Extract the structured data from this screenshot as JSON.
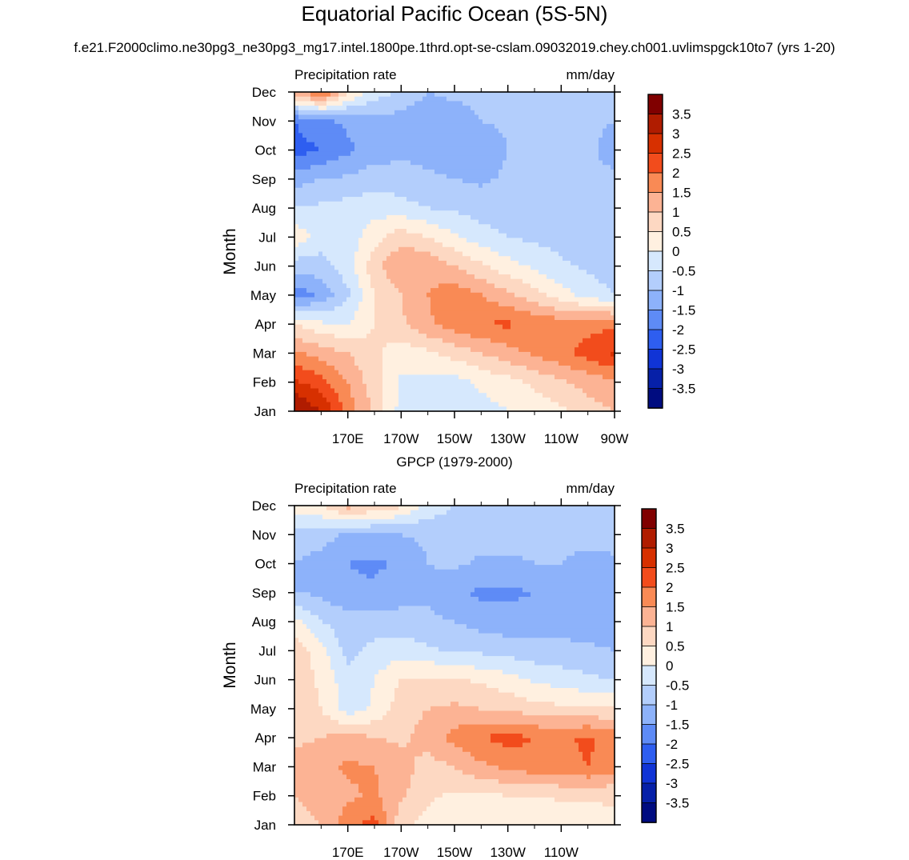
{
  "figure": {
    "title": "Equatorial Pacific Ocean (5S-5N)",
    "subtitle": "f.e21.F2000climo.ne30pg3_ne30pg3_mg17.intel.1800pe.1thrd.opt-se-cslam.09032019.chey.ch001.uvlimspgck10to7 (yrs 1-20)"
  },
  "chart_data": [
    {
      "type": "heatmap",
      "title": "",
      "left_label": "Precipitation rate",
      "right_label": "mm/day",
      "ylabel": "Month",
      "xlabel": "",
      "x_ticks": [
        "170E",
        "170W",
        "150W",
        "130W",
        "110W",
        "90W"
      ],
      "x_tick_values": [
        170,
        190,
        210,
        230,
        250,
        270
      ],
      "xlim": [
        150,
        270
      ],
      "y_ticks": [
        "Jan",
        "Feb",
        "Mar",
        "Apr",
        "May",
        "Jun",
        "Jul",
        "Aug",
        "Sep",
        "Oct",
        "Nov",
        "Dec"
      ],
      "ylim": [
        1,
        12
      ],
      "colorbar_labels": [
        "3.5",
        "3",
        "2.5",
        "2",
        "1.5",
        "1",
        "0.5",
        "0",
        "-0.5",
        "-1",
        "-1.5",
        "-2",
        "-2.5",
        "-3",
        "-3.5"
      ],
      "colorbar_colors": [
        "#800000",
        "#b01c00",
        "#d73000",
        "#f24c1c",
        "#f98a55",
        "#fcb394",
        "#fdd8c2",
        "#fff0e0",
        "#d6e8fd",
        "#b3cefc",
        "#8db2fa",
        "#5e8bf6",
        "#2e5ef0",
        "#1034d6",
        "#0620a8",
        "#000c80"
      ],
      "x": [
        150,
        160,
        170,
        180,
        190,
        200,
        210,
        220,
        230,
        240,
        250,
        260,
        270
      ],
      "y": [
        1,
        2,
        3,
        4,
        5,
        6,
        7,
        8,
        9,
        10,
        11,
        12
      ],
      "z": [
        [
          3.6,
          3.0,
          1.8,
          0.9,
          -0.2,
          -0.3,
          -0.2,
          -0.2,
          0.0,
          0.2,
          0.4,
          0.8,
          1.0
        ],
        [
          2.6,
          2.2,
          1.5,
          0.7,
          -0.1,
          -0.2,
          -0.2,
          0.1,
          0.3,
          0.6,
          0.9,
          1.2,
          1.4
        ],
        [
          1.6,
          1.3,
          1.0,
          0.6,
          0.2,
          0.4,
          0.7,
          1.0,
          1.3,
          1.6,
          1.9,
          2.2,
          2.6
        ],
        [
          0.5,
          0.1,
          0.0,
          0.5,
          0.9,
          1.4,
          1.8,
          2.0,
          2.1,
          1.9,
          1.8,
          1.8,
          1.9
        ],
        [
          -1.8,
          -1.4,
          -0.6,
          0.5,
          1.0,
          1.5,
          1.8,
          1.5,
          1.1,
          0.7,
          0.2,
          -0.2,
          -0.5
        ],
        [
          -0.8,
          -0.7,
          -0.2,
          0.8,
          1.5,
          1.4,
          1.0,
          0.6,
          0.2,
          -0.1,
          -0.4,
          -0.6,
          -0.8
        ],
        [
          0.4,
          -0.3,
          -0.3,
          0.3,
          0.8,
          0.5,
          0.1,
          -0.3,
          -0.5,
          -0.6,
          -0.7,
          -0.8,
          -0.9
        ],
        [
          -0.5,
          -0.4,
          -0.3,
          -0.2,
          -0.3,
          -0.5,
          -0.6,
          -0.7,
          -0.8,
          -0.8,
          -0.8,
          -0.9,
          -0.9
        ],
        [
          -1.2,
          -1.0,
          -0.9,
          -0.7,
          -0.8,
          -0.9,
          -1.0,
          -1.1,
          -0.9,
          -0.8,
          -0.8,
          -0.9,
          -0.9
        ],
        [
          -2.2,
          -2.0,
          -1.6,
          -1.3,
          -1.1,
          -1.2,
          -1.3,
          -1.4,
          -1.0,
          -0.9,
          -0.9,
          -0.9,
          -1.2
        ],
        [
          -2.0,
          -1.6,
          -1.4,
          -1.2,
          -1.2,
          -1.4,
          -1.2,
          -1.0,
          -0.9,
          -0.9,
          -0.9,
          -0.9,
          -1.0
        ],
        [
          1.2,
          2.2,
          0.6,
          -0.2,
          -0.6,
          -1.0,
          -0.9,
          -0.9,
          -0.8,
          -0.8,
          -0.8,
          -0.8,
          -0.9
        ]
      ]
    },
    {
      "type": "heatmap",
      "title": "GPCP (1979-2000)",
      "left_label": "Precipitation rate",
      "right_label": "mm/day",
      "ylabel": "Month",
      "xlabel": "",
      "x_ticks": [
        "170E",
        "170W",
        "150W",
        "130W",
        "110W"
      ],
      "x_tick_values": [
        170,
        190,
        210,
        230,
        250
      ],
      "xlim": [
        150,
        270
      ],
      "y_ticks": [
        "Jan",
        "Feb",
        "Mar",
        "Apr",
        "May",
        "Jun",
        "Jul",
        "Aug",
        "Sep",
        "Oct",
        "Nov",
        "Dec"
      ],
      "ylim": [
        1,
        12
      ],
      "colorbar_labels": [
        "3.5",
        "3",
        "2.5",
        "2",
        "1.5",
        "1",
        "0.5",
        "0",
        "-0.5",
        "-1",
        "-1.5",
        "-2",
        "-2.5",
        "-3",
        "-3.5"
      ],
      "colorbar_colors": [
        "#800000",
        "#b01c00",
        "#d73000",
        "#f24c1c",
        "#f98a55",
        "#fcb394",
        "#fdd8c2",
        "#fff0e0",
        "#d6e8fd",
        "#b3cefc",
        "#8db2fa",
        "#5e8bf6",
        "#2e5ef0",
        "#1034d6",
        "#0620a8",
        "#000c80"
      ],
      "x": [
        150,
        160,
        170,
        180,
        190,
        200,
        210,
        220,
        230,
        240,
        250,
        260,
        270
      ],
      "y": [
        1,
        2,
        3,
        4,
        5,
        6,
        7,
        8,
        9,
        10,
        11,
        12
      ],
      "z": [
        [
          0.8,
          1.0,
          1.8,
          2.2,
          0.6,
          0.3,
          0.2,
          0.2,
          0.1,
          0.0,
          0.1,
          0.2,
          0.3
        ],
        [
          1.0,
          1.2,
          1.4,
          1.6,
          1.1,
          0.6,
          0.4,
          0.4,
          0.5,
          0.5,
          0.6,
          0.6,
          0.6
        ],
        [
          1.2,
          1.3,
          1.6,
          1.5,
          1.2,
          0.8,
          1.0,
          1.4,
          1.6,
          1.8,
          1.8,
          2.0,
          1.7
        ],
        [
          0.9,
          1.0,
          1.2,
          1.0,
          0.9,
          1.2,
          1.7,
          2.0,
          2.2,
          2.0,
          1.9,
          2.1,
          1.8
        ],
        [
          0.7,
          0.5,
          -0.3,
          0.1,
          0.8,
          1.0,
          1.1,
          1.0,
          0.9,
          0.7,
          0.6,
          0.6,
          0.5
        ],
        [
          0.9,
          0.4,
          -0.3,
          0.0,
          0.5,
          0.6,
          0.6,
          0.4,
          0.2,
          -0.1,
          -0.2,
          -0.4,
          -0.5
        ],
        [
          0.8,
          0.2,
          -0.7,
          -0.3,
          -0.2,
          -0.4,
          -0.6,
          -0.6,
          -0.7,
          -0.8,
          -0.9,
          -0.9,
          -1.0
        ],
        [
          0.2,
          -0.5,
          -0.8,
          -0.8,
          -0.8,
          -0.9,
          -1.0,
          -1.2,
          -1.3,
          -1.2,
          -1.1,
          -1.3,
          -1.2
        ],
        [
          -1.0,
          -1.1,
          -1.4,
          -1.4,
          -1.2,
          -1.1,
          -1.4,
          -1.6,
          -1.6,
          -1.5,
          -1.2,
          -1.5,
          -1.4
        ],
        [
          -1.0,
          -1.2,
          -1.5,
          -1.6,
          -1.4,
          -1.0,
          -0.9,
          -1.1,
          -1.1,
          -1.0,
          -1.0,
          -1.2,
          -1.1
        ],
        [
          -0.8,
          -0.8,
          -1.1,
          -1.1,
          -1.0,
          -0.9,
          -0.8,
          -0.8,
          -0.8,
          -0.8,
          -0.8,
          -0.8,
          -0.8
        ],
        [
          0.3,
          0.5,
          1.2,
          0.9,
          0.6,
          -0.2,
          -0.5,
          -0.6,
          -0.7,
          -0.8,
          -0.8,
          -0.8,
          -0.8
        ]
      ]
    }
  ]
}
